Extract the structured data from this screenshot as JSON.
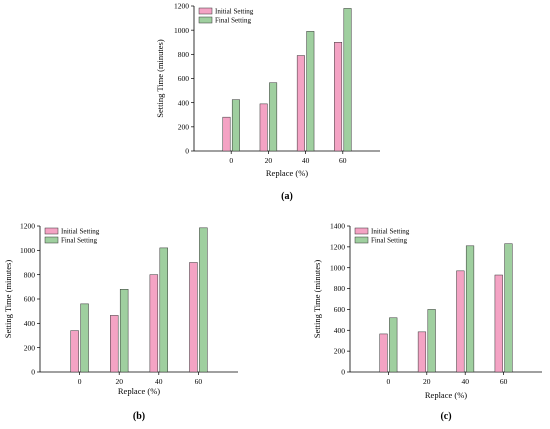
{
  "figure_labels": [
    "(a)",
    "(b)",
    "(c)"
  ],
  "colors": {
    "initial": "#f4a3c4",
    "final": "#9fcf9f",
    "stroke": "#333333",
    "axis": "#000000"
  },
  "chart_data": [
    {
      "type": "bar",
      "panel_label": "(a)",
      "categories": [
        "0",
        "20",
        "40",
        "60"
      ],
      "series": [
        {
          "name": "Initial Setting",
          "values": [
            280,
            390,
            790,
            900
          ]
        },
        {
          "name": "Final Setting",
          "values": [
            425,
            565,
            990,
            1180
          ]
        }
      ],
      "xlabel": "Replace (%)",
      "ylabel": "Setting Time (minutes)",
      "ylim": [
        0,
        1200
      ],
      "yticks": [
        0,
        200,
        400,
        600,
        800,
        1000,
        1200
      ],
      "legend": "top-left",
      "grid": false
    },
    {
      "type": "bar",
      "panel_label": "(b)",
      "categories": [
        "0",
        "20",
        "40",
        "60"
      ],
      "series": [
        {
          "name": "Initial Setting",
          "values": [
            340,
            465,
            800,
            900
          ]
        },
        {
          "name": "Final Setting",
          "values": [
            560,
            680,
            1020,
            1185
          ]
        }
      ],
      "xlabel": "Replace (%)",
      "ylabel": "Setting Time (minutes)",
      "ylim": [
        0,
        1200
      ],
      "yticks": [
        0,
        200,
        400,
        600,
        800,
        1000,
        1200
      ],
      "legend": "top-left",
      "grid": false
    },
    {
      "type": "bar",
      "panel_label": "(c)",
      "categories": [
        "0",
        "20",
        "40",
        "60"
      ],
      "series": [
        {
          "name": "Initial Setting",
          "values": [
            365,
            385,
            970,
            930
          ]
        },
        {
          "name": "Final Setting",
          "values": [
            520,
            600,
            1210,
            1230
          ]
        }
      ],
      "xlabel": "Replace (%)",
      "ylabel": "Setting Time (minutes)",
      "ylim": [
        0,
        1400
      ],
      "yticks": [
        0,
        200,
        400,
        600,
        800,
        1000,
        1200,
        1400
      ],
      "legend": "top-left",
      "grid": false
    }
  ]
}
